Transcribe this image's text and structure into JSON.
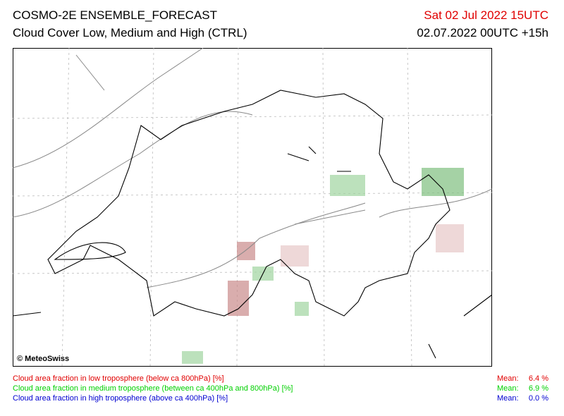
{
  "header": {
    "title": "COSMO-2E ENSEMBLE_FORECAST",
    "subtitle": "Cloud Cover Low, Medium and High (CTRL)",
    "valid_time": "Sat 02 Jul 2022 15UTC",
    "run_time": "02.07.2022 00UTC +15h"
  },
  "map": {
    "copyright": "© MeteoSwiss"
  },
  "legend": [
    {
      "label": "Cloud area fraction in low troposphere (below ca 800hPa) [%]",
      "mean_label": "Mean:",
      "mean": "6.4 %"
    },
    {
      "label": "Cloud area fraction in medium troposphere (between ca 400hPa and 800hPa) [%]",
      "mean_label": "Mean:",
      "mean": "6.9 %"
    },
    {
      "label": "Cloud area fraction in high troposphere (above ca 400hPa) [%]",
      "mean_label": "Mean:",
      "mean": "0.0 %"
    }
  ]
}
